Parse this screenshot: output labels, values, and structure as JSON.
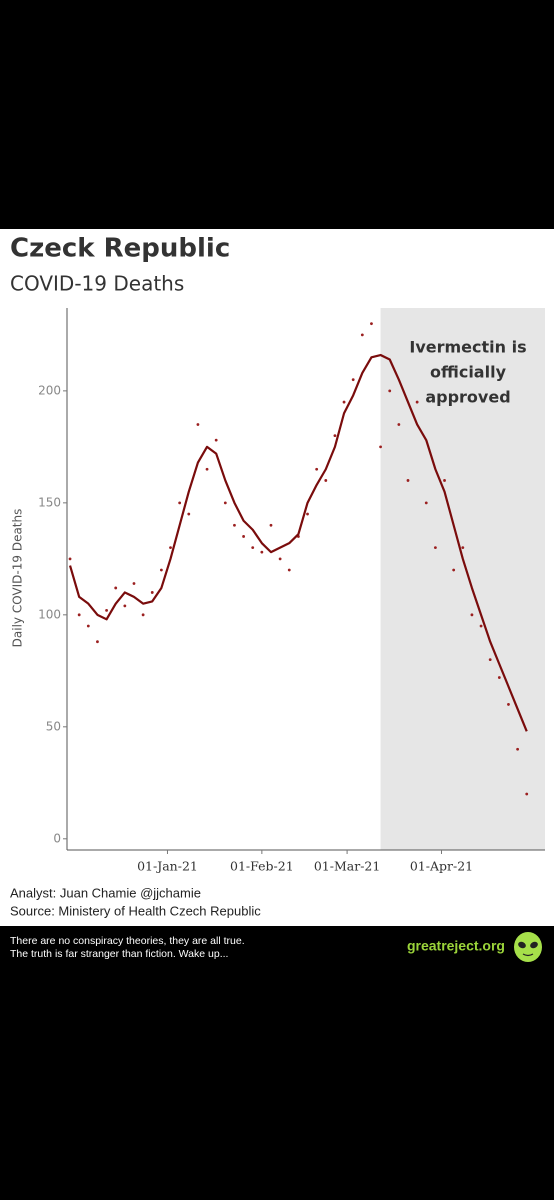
{
  "chart_data": {
    "type": "line",
    "title": "Czeck Republic",
    "subtitle": "COVID-19 Deaths",
    "y_label": "Daily COVID-19 Deaths",
    "annotation": [
      "Ivermectin is",
      "officially",
      "approved"
    ],
    "shade_start": "2021-03-12",
    "x": [
      "2020-11-30",
      "2020-12-03",
      "2020-12-06",
      "2020-12-09",
      "2020-12-12",
      "2020-12-15",
      "2020-12-18",
      "2020-12-21",
      "2020-12-24",
      "2020-12-27",
      "2020-12-30",
      "2021-01-02",
      "2021-01-05",
      "2021-01-08",
      "2021-01-11",
      "2021-01-14",
      "2021-01-17",
      "2021-01-20",
      "2021-01-23",
      "2021-01-26",
      "2021-01-29",
      "2021-02-01",
      "2021-02-04",
      "2021-02-07",
      "2021-02-10",
      "2021-02-13",
      "2021-02-16",
      "2021-02-19",
      "2021-02-22",
      "2021-02-25",
      "2021-02-28",
      "2021-03-03",
      "2021-03-06",
      "2021-03-09",
      "2021-03-12",
      "2021-03-15",
      "2021-03-18",
      "2021-03-21",
      "2021-03-24",
      "2021-03-27",
      "2021-03-30",
      "2021-04-02",
      "2021-04-05",
      "2021-04-08",
      "2021-04-11",
      "2021-04-14",
      "2021-04-17",
      "2021-04-20",
      "2021-04-23",
      "2021-04-26",
      "2021-04-29"
    ],
    "series": [
      {
        "kind": "line",
        "color": "#7a0c0c",
        "values": [
          122,
          108,
          105,
          100,
          98,
          105,
          110,
          108,
          105,
          106,
          112,
          125,
          140,
          155,
          168,
          175,
          172,
          160,
          150,
          142,
          138,
          132,
          128,
          130,
          132,
          136,
          150,
          158,
          165,
          175,
          190,
          198,
          208,
          215,
          216,
          214,
          205,
          195,
          185,
          178,
          165,
          155,
          140,
          125,
          112,
          100,
          88,
          78,
          68,
          58,
          48
        ]
      },
      {
        "kind": "dots",
        "color": "#9b2020",
        "values": [
          125,
          100,
          95,
          88,
          102,
          112,
          104,
          114,
          100,
          110,
          120,
          130,
          150,
          145,
          185,
          165,
          178,
          150,
          140,
          135,
          130,
          128,
          140,
          125,
          120,
          135,
          145,
          165,
          160,
          180,
          195,
          205,
          225,
          230,
          175,
          200,
          185,
          160,
          195,
          150,
          130,
          160,
          120,
          130,
          100,
          95,
          80,
          72,
          60,
          40,
          20
        ]
      }
    ],
    "xlim": [
      "2020-11-29",
      "2021-05-05"
    ],
    "xticks": [
      {
        "value": "2021-01-01",
        "label": "01-Jan-21"
      },
      {
        "value": "2021-02-01",
        "label": "01-Feb-21"
      },
      {
        "value": "2021-03-01",
        "label": "01-Mar-21"
      },
      {
        "value": "2021-04-01",
        "label": "01-Apr-21"
      }
    ],
    "ylim": [
      -5,
      237
    ],
    "yticks": [
      0,
      50,
      100,
      150,
      200
    ]
  },
  "credits": {
    "analyst": "Analyst: Juan Chamie @jjchamie",
    "source": "Source: Ministery of Health Czech Republic"
  },
  "footer": {
    "lines": [
      "There are no conspiracy theories, they are all true.",
      "The truth is far stranger than fiction. Wake up..."
    ],
    "site": "greatreject.org"
  }
}
